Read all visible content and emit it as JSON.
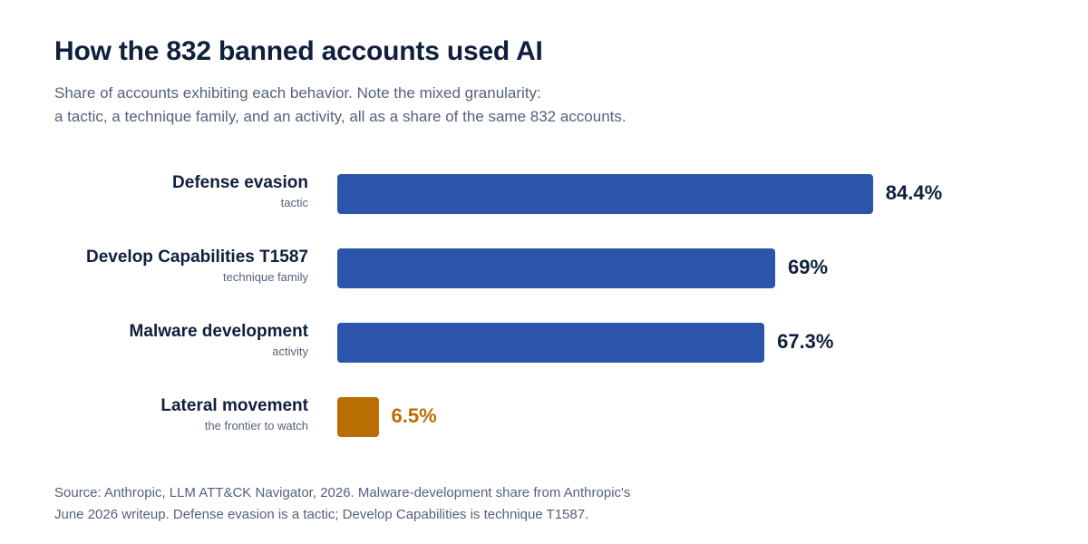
{
  "header": {
    "title": "How the 832 banned accounts used AI",
    "subtitle_lines": [
      "Share of accounts exhibiting each behavior. Note the mixed granularity:",
      "a tactic, a technique family, and an activity, all as a share of the same 832 accounts."
    ]
  },
  "chart_data": {
    "type": "bar",
    "orientation": "horizontal",
    "title": "How the 832 banned accounts used AI",
    "categories": [
      "Defense evasion",
      "Develop Capabilities T1587",
      "Malware development",
      "Lateral movement"
    ],
    "category_notes": [
      "tactic",
      "technique family",
      "activity",
      "the frontier to watch"
    ],
    "values": [
      84.4,
      69,
      67.3,
      6.5
    ],
    "value_labels": [
      "84.4%",
      "69%",
      "67.3%",
      "6.5%"
    ],
    "unit": "%",
    "xlim": [
      0,
      100
    ],
    "grid": false,
    "bar_colors": [
      "#2b55ab",
      "#2b55ab",
      "#2b55ab",
      "#b86e00"
    ],
    "value_label_colors": [
      "#0f1f3d",
      "#0f1f3d",
      "#0f1f3d",
      "#b86e00"
    ]
  },
  "footer": {
    "source_lines": [
      "Source: Anthropic, LLM ATT&CK Navigator, 2026. Malware-development share from Anthropic's",
      "June 2026 writeup. Defense evasion is a tactic; Develop Capabilities is technique T1587."
    ]
  }
}
